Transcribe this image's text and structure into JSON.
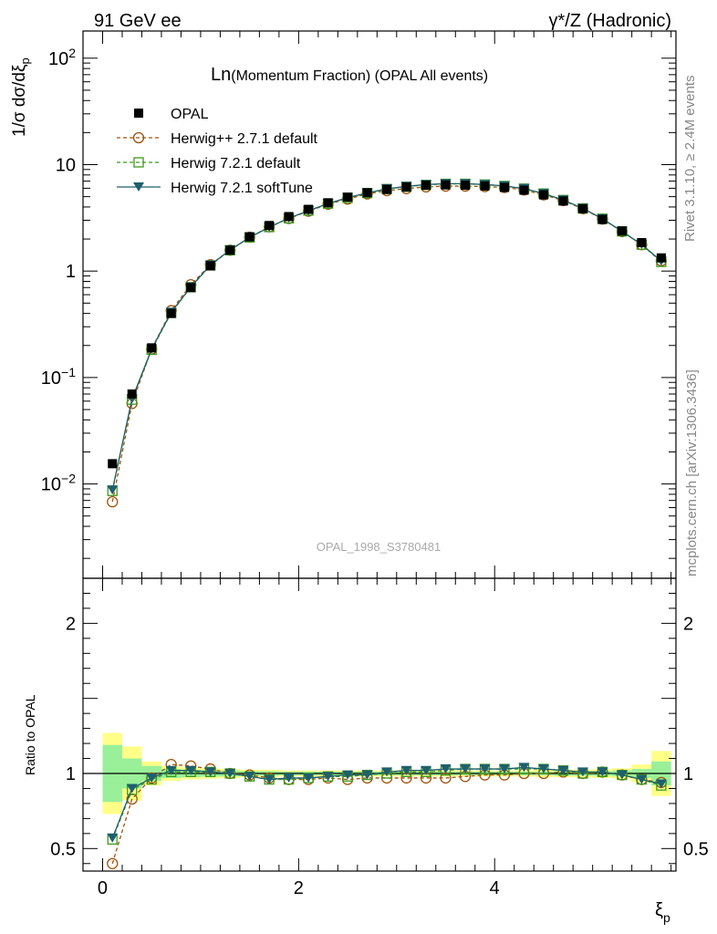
{
  "header": {
    "left": "91 GeV ee",
    "right": "γ*/Z (Hadronic)"
  },
  "side_labels": {
    "rivet": "Rivet 3.1.10, ≥ 2.4M events",
    "mcplots": "mcplots.cern.ch [arXiv:1306.3436]"
  },
  "chart_data": [
    {
      "type": "line",
      "title": "Ln(Momentum Fraction) (OPAL All events)",
      "title_main": "Ln",
      "title_rest": "(Momentum Fraction) (OPAL All events)",
      "ylabel": "1/σ dσ/dξp",
      "yscale": "log",
      "ylim": [
        0.0013,
        180
      ],
      "xlim": [
        -0.2,
        5.85
      ],
      "yticks": [
        {
          "value": 0.01,
          "base": "10",
          "exp": "−2"
        },
        {
          "value": 0.1,
          "base": "10",
          "exp": "−1"
        },
        {
          "value": 1,
          "label": "1"
        },
        {
          "value": 10,
          "label": "10"
        },
        {
          "value": 100,
          "base": "10",
          "exp": "2"
        }
      ],
      "watermark": "OPAL_1998_S3780481",
      "x": [
        0.1,
        0.3,
        0.5,
        0.7,
        0.9,
        1.1,
        1.3,
        1.5,
        1.7,
        1.9,
        2.1,
        2.3,
        2.5,
        2.7,
        2.9,
        3.1,
        3.3,
        3.5,
        3.7,
        3.9,
        4.1,
        4.3,
        4.5,
        4.7,
        4.9,
        5.1,
        5.3,
        5.5,
        5.7
      ],
      "series": [
        {
          "name": "OPAL",
          "color": "#000000",
          "marker": "square",
          "values": [
            0.0155,
            0.07,
            0.19,
            0.4,
            0.7,
            1.12,
            1.57,
            2.1,
            2.68,
            3.25,
            3.8,
            4.38,
            4.95,
            5.45,
            5.85,
            6.15,
            6.4,
            6.45,
            6.4,
            6.3,
            6.1,
            5.75,
            5.2,
            4.55,
            3.85,
            3.05,
            2.38,
            1.85,
            1.33
          ]
        },
        {
          "name": "Herwig++ 2.7.1 default",
          "color": "#a0520a",
          "marker": "circle",
          "dash": "4,3",
          "values": [
            0.0068,
            0.057,
            0.185,
            0.425,
            0.745,
            1.15,
            1.57,
            2.08,
            2.6,
            3.12,
            3.65,
            4.25,
            4.75,
            5.3,
            5.7,
            5.95,
            6.18,
            6.28,
            6.28,
            6.22,
            6.1,
            5.78,
            5.2,
            4.6,
            3.85,
            3.08,
            2.35,
            1.77,
            1.25
          ]
        },
        {
          "name": "Herwig 7.2.1 default",
          "color": "#3a9a1a",
          "marker": "square-open",
          "dash": "4,3",
          "values": [
            0.0086,
            0.062,
            0.182,
            0.405,
            0.705,
            1.13,
            1.57,
            2.07,
            2.59,
            3.13,
            3.7,
            4.3,
            4.87,
            5.4,
            5.9,
            6.2,
            6.45,
            6.6,
            6.6,
            6.5,
            6.3,
            5.95,
            5.35,
            4.65,
            3.88,
            3.1,
            2.36,
            1.77,
            1.22
          ]
        },
        {
          "name": "Herwig 7.2.1 softTune",
          "color": "#1f5f6e",
          "marker": "triangle-down",
          "values": [
            0.0088,
            0.063,
            0.185,
            0.41,
            0.71,
            1.14,
            1.58,
            2.07,
            2.58,
            3.15,
            3.68,
            4.3,
            4.9,
            5.42,
            5.92,
            6.25,
            6.5,
            6.62,
            6.62,
            6.5,
            6.3,
            5.95,
            5.35,
            4.65,
            3.88,
            3.1,
            2.36,
            1.78,
            1.24
          ]
        }
      ]
    },
    {
      "type": "line",
      "ylabel": "Ratio to OPAL",
      "xlabel": "ξp",
      "ylim": [
        0.35,
        2.3
      ],
      "xlim": [
        -0.2,
        5.85
      ],
      "yticks": [
        0.5,
        1,
        2
      ],
      "xticks": [
        0,
        2,
        4
      ],
      "x": [
        0.1,
        0.3,
        0.5,
        0.7,
        0.9,
        1.1,
        1.3,
        1.5,
        1.7,
        1.9,
        2.1,
        2.3,
        2.5,
        2.7,
        2.9,
        3.1,
        3.3,
        3.5,
        3.7,
        3.9,
        4.1,
        4.3,
        4.5,
        4.7,
        4.9,
        5.1,
        5.3,
        5.5,
        5.7
      ],
      "uncertainty_bands": {
        "stat_color": "#99f099",
        "total_color": "#ffff88",
        "inner_halfwidth": [
          0.19,
          0.1,
          0.05,
          0.03,
          0.025,
          0.02,
          0.02,
          0.015,
          0.015,
          0.012,
          0.012,
          0.012,
          0.012,
          0.012,
          0.012,
          0.012,
          0.012,
          0.012,
          0.012,
          0.012,
          0.012,
          0.012,
          0.012,
          0.015,
          0.015,
          0.015,
          0.02,
          0.03,
          0.08
        ],
        "outer_halfwidth": [
          0.27,
          0.18,
          0.08,
          0.05,
          0.04,
          0.035,
          0.03,
          0.025,
          0.025,
          0.02,
          0.02,
          0.02,
          0.02,
          0.02,
          0.02,
          0.02,
          0.02,
          0.02,
          0.02,
          0.02,
          0.02,
          0.02,
          0.025,
          0.025,
          0.025,
          0.03,
          0.035,
          0.06,
          0.15
        ]
      },
      "series": [
        {
          "name": "Herwig++ 2.7.1 default",
          "color": "#a0520a",
          "marker": "circle",
          "dash": "4,3",
          "values": [
            0.4,
            0.83,
            0.97,
            1.06,
            1.05,
            1.03,
            1.0,
            0.99,
            0.97,
            0.96,
            0.96,
            0.97,
            0.96,
            0.97,
            0.97,
            0.97,
            0.97,
            0.97,
            0.98,
            0.99,
            0.99,
            1.0,
            1.0,
            1.01,
            1.0,
            1.01,
            0.99,
            0.96,
            0.94
          ]
        },
        {
          "name": "Herwig 7.2.1 default",
          "color": "#3a9a1a",
          "marker": "square-open",
          "dash": "4,3",
          "values": [
            0.56,
            0.89,
            0.96,
            1.01,
            1.01,
            1.01,
            1.0,
            0.98,
            0.96,
            0.96,
            0.97,
            0.98,
            0.98,
            0.99,
            1.0,
            1.01,
            1.01,
            1.02,
            1.03,
            1.03,
            1.03,
            1.03,
            1.03,
            1.02,
            1.0,
            1.01,
            0.99,
            0.96,
            0.92
          ]
        },
        {
          "name": "Herwig 7.2.1 softTune",
          "color": "#1f5f6e",
          "marker": "triangle-down",
          "values": [
            0.57,
            0.9,
            0.97,
            1.02,
            1.02,
            1.01,
            1.0,
            0.98,
            0.96,
            0.97,
            0.97,
            0.98,
            0.99,
            0.99,
            1.01,
            1.02,
            1.02,
            1.03,
            1.03,
            1.03,
            1.03,
            1.04,
            1.03,
            1.02,
            1.01,
            1.01,
            0.99,
            0.96,
            0.93
          ]
        }
      ]
    }
  ]
}
